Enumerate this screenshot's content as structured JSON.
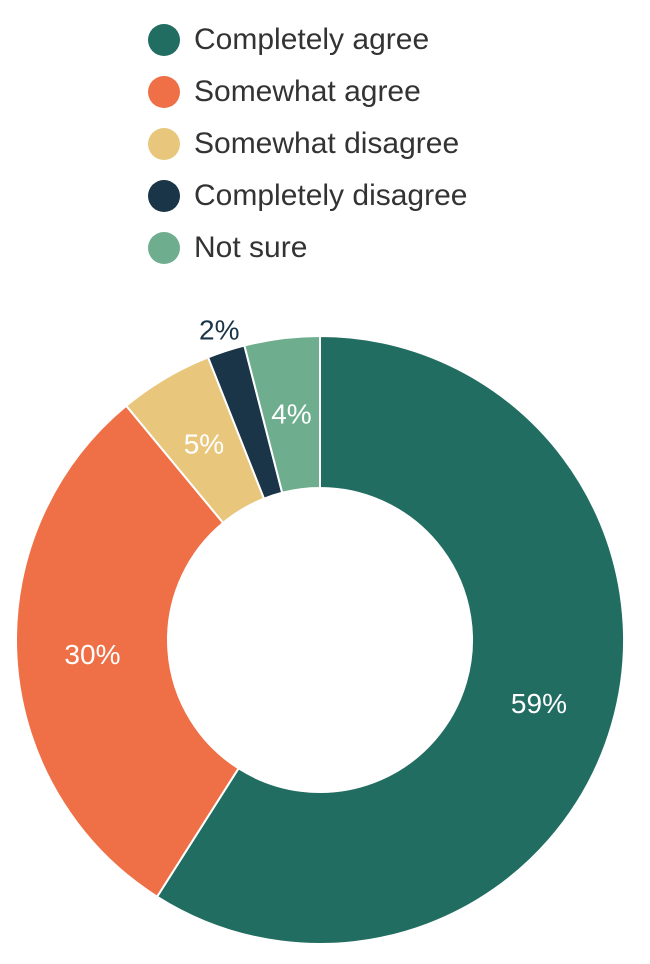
{
  "chart_data": {
    "type": "pie",
    "subtype": "donut",
    "categories": [
      "Completely agree",
      "Somewhat agree",
      "Somewhat disagree",
      "Completely disagree",
      "Not sure"
    ],
    "values": [
      59,
      30,
      5,
      2,
      4
    ],
    "unit": "%",
    "labels": [
      "59%",
      "30%",
      "5%",
      "2%",
      "4%"
    ],
    "colors": [
      "#226d62",
      "#ef7046",
      "#e8c77d",
      "#1a3547",
      "#6eae8f"
    ],
    "label_colors": [
      "#ffffff",
      "#ffffff",
      "#ffffff",
      "#1a3547",
      "#ffffff"
    ],
    "legend_position": "top",
    "start_angle": "12 o'clock",
    "direction": "clockwise"
  }
}
